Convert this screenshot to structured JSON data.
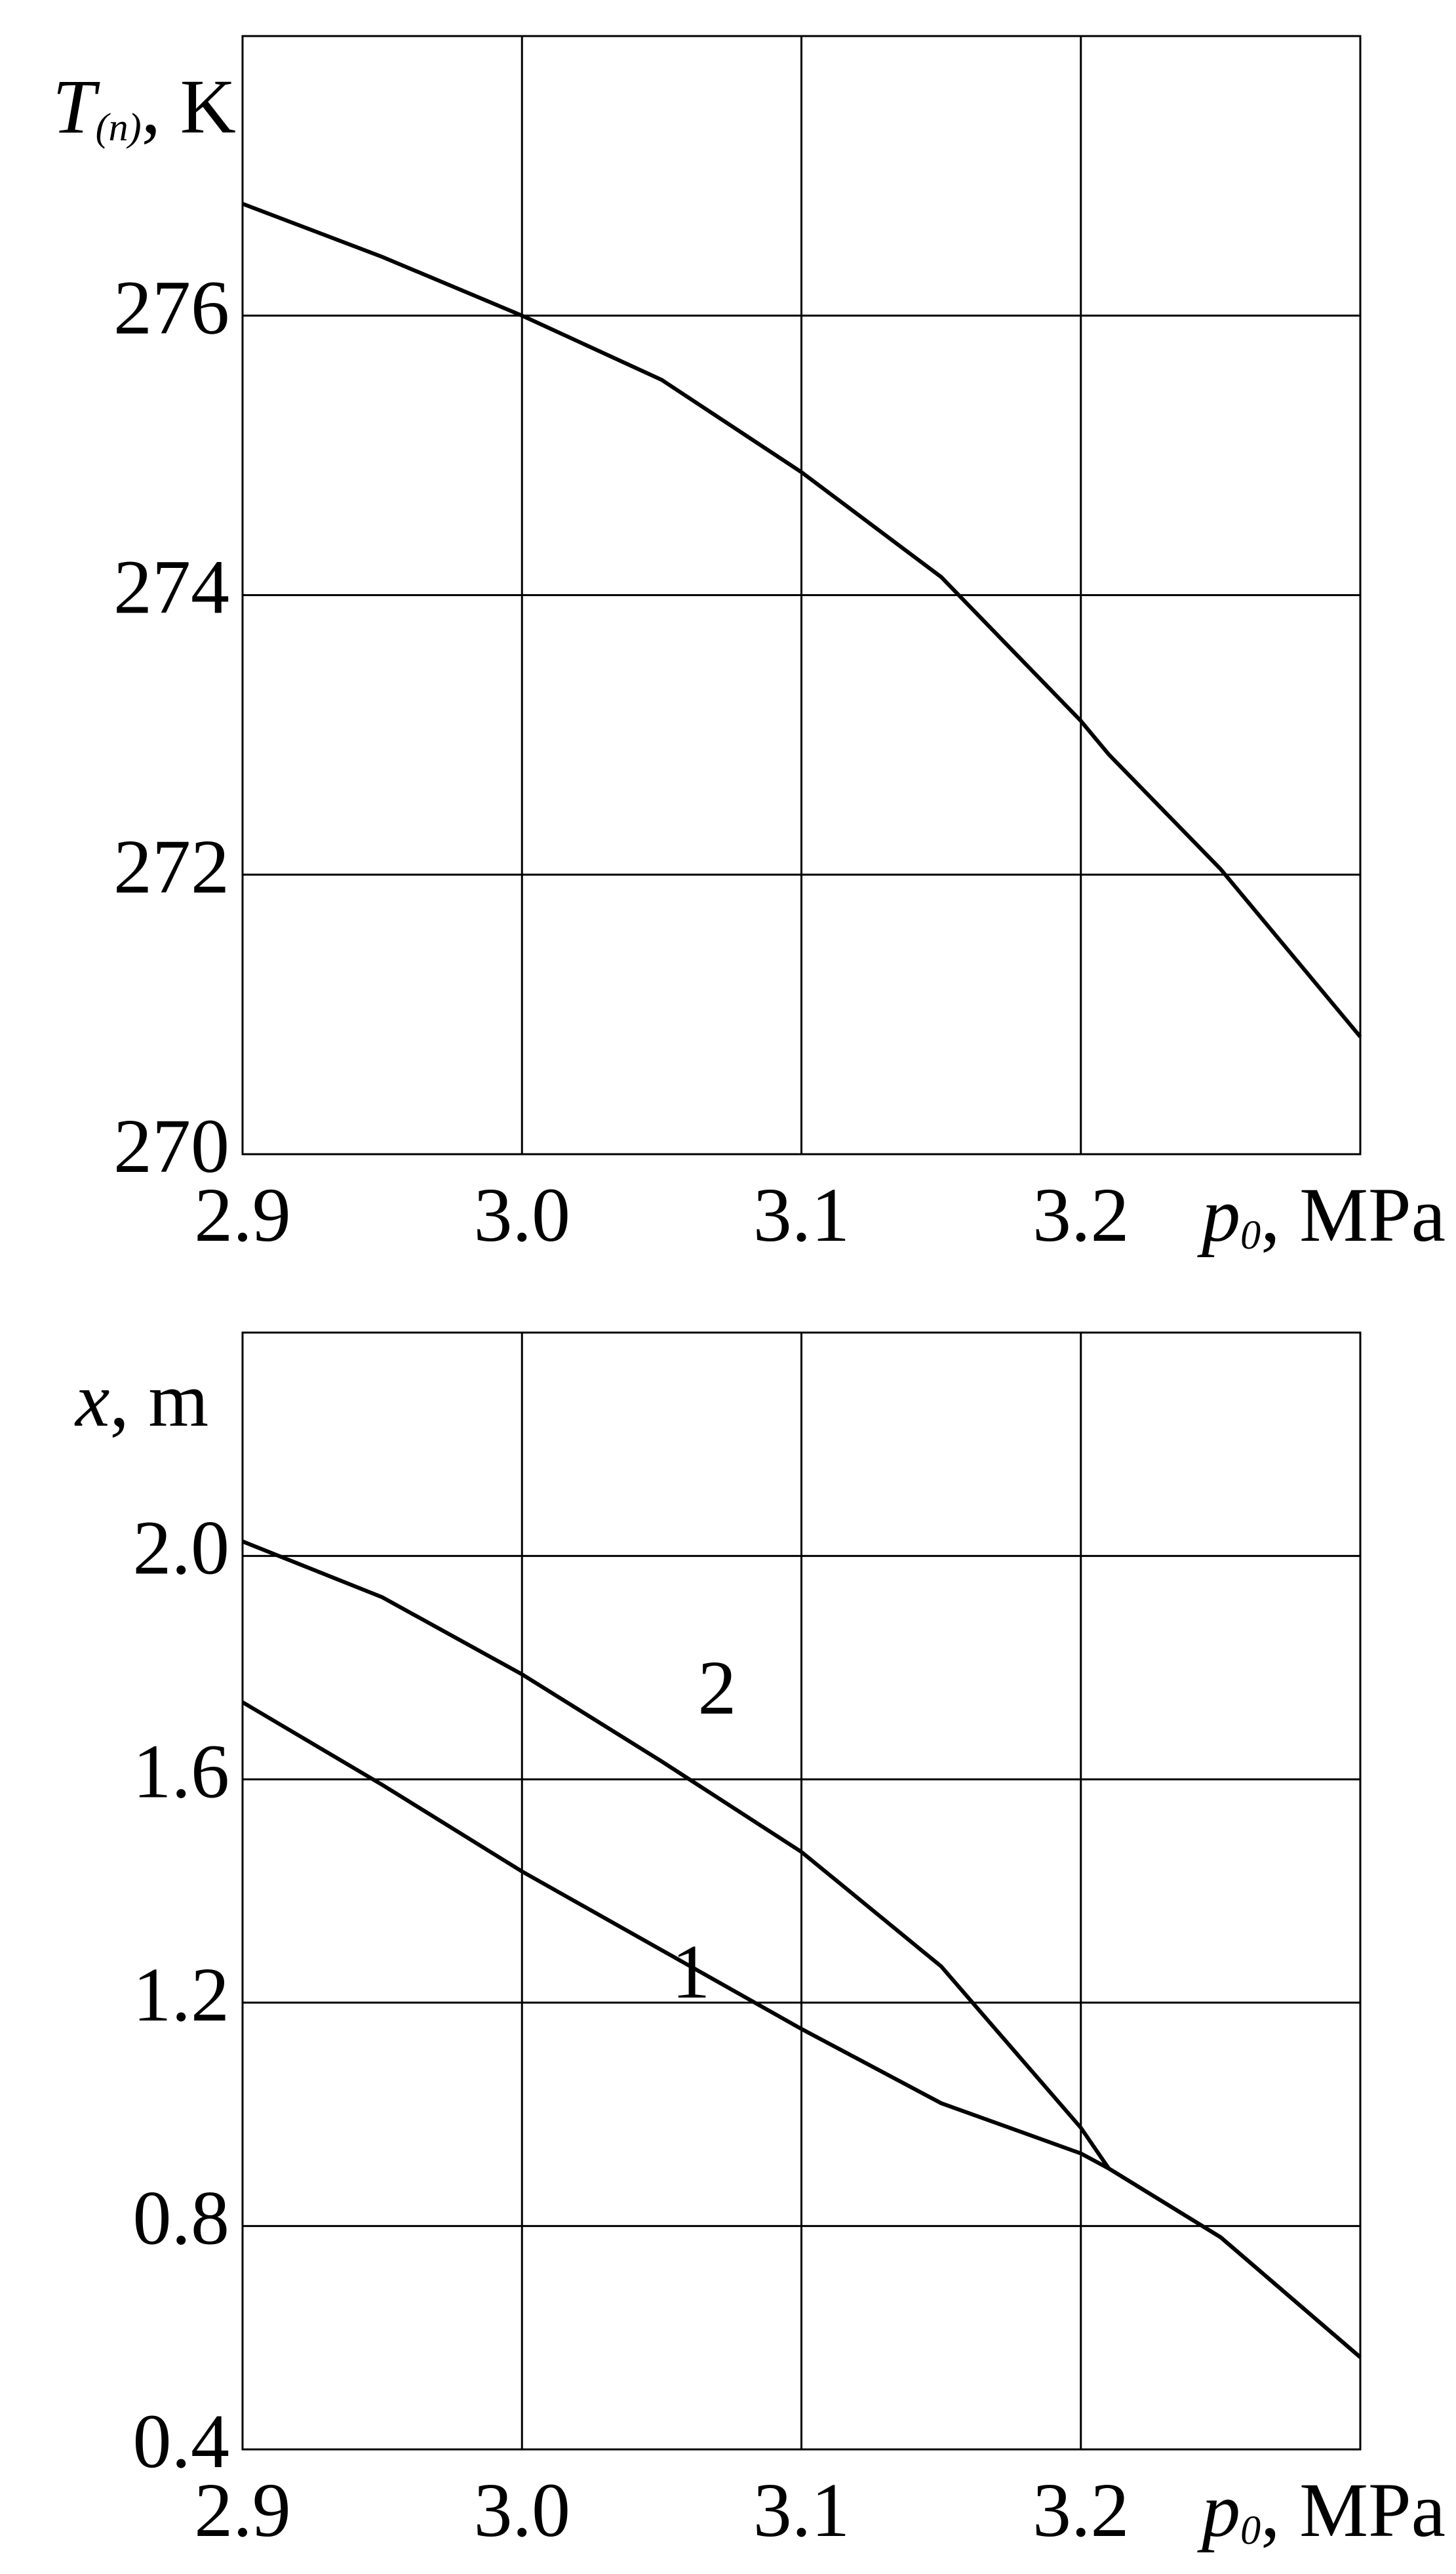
{
  "chart_data": [
    {
      "type": "line",
      "y_label": {
        "main": "T",
        "sub": "(n)",
        "rest": ", K"
      },
      "x_label": {
        "main": "p",
        "sub": "0",
        "rest": ", MPa"
      },
      "x": [
        2.9,
        2.95,
        3.0,
        3.05,
        3.1,
        3.15,
        3.2,
        3.21,
        3.25,
        3.3
      ],
      "series": [
        {
          "color": "#000000",
          "values": [
            276.8,
            276.42,
            276.0,
            275.54,
            274.88,
            274.13,
            273.1,
            272.86,
            272.04,
            270.84
          ]
        }
      ],
      "xlim": [
        2.9,
        3.3
      ],
      "ylim": [
        270,
        278
      ],
      "xticks": [
        2.9,
        {
          "value": 3,
          "label": "3.0"
        },
        3.1,
        3.2
      ],
      "yticks": [
        270,
        272,
        274,
        276
      ],
      "grid": true
    },
    {
      "type": "line",
      "y_label": {
        "main": "x",
        "rest": ", m"
      },
      "x_label": {
        "main": "p",
        "sub": "0",
        "rest": ", MPa"
      },
      "x": [
        2.9,
        2.95,
        3.0,
        3.05,
        3.1,
        3.15,
        3.2,
        3.21,
        3.25,
        3.3
      ],
      "series": [
        {
          "name": "1",
          "color": "#000000",
          "values": [
            1.738,
            1.59,
            1.435,
            1.294,
            1.153,
            1.02,
            0.93,
            0.903,
            0.78,
            0.565
          ]
        },
        {
          "name": "2",
          "color": "#000000",
          "values": [
            2.026,
            1.926,
            1.788,
            1.632,
            1.47,
            1.265,
            0.976,
            0.903,
            0.78,
            0.565
          ]
        }
      ],
      "xlim": [
        2.9,
        3.3
      ],
      "ylim": [
        0.4,
        2.4
      ],
      "xticks": [
        2.9,
        {
          "value": 3,
          "label": "3.0"
        },
        3.1,
        3.2
      ],
      "yticks": [
        0.4,
        0.8,
        1.2,
        1.6,
        {
          "value": 2,
          "label": "2.0"
        }
      ],
      "grid": true
    }
  ]
}
